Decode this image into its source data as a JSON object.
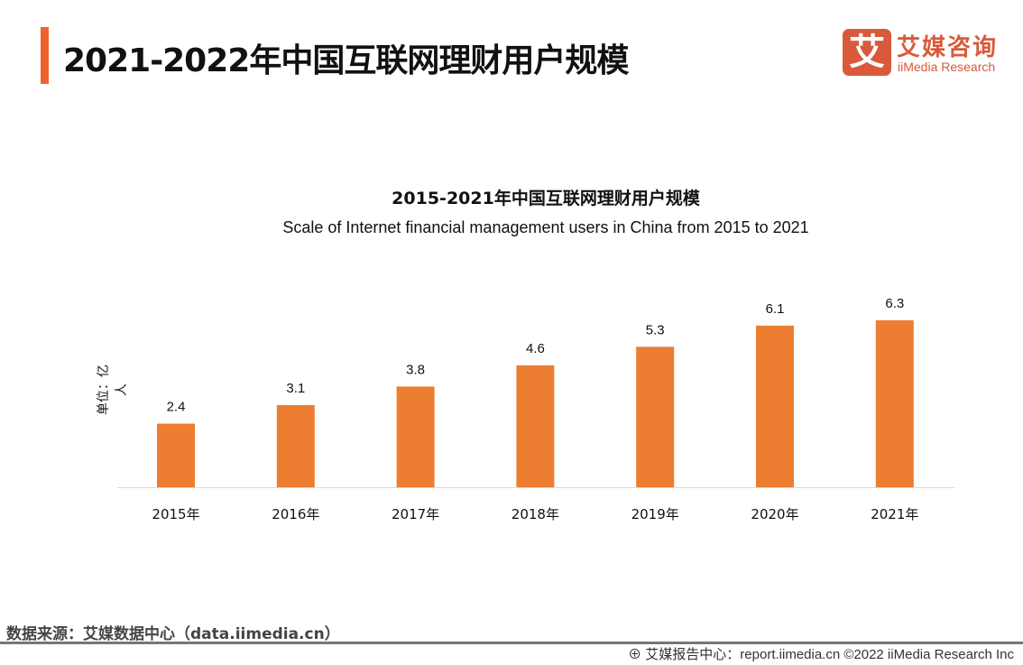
{
  "header": {
    "title": "2021-2022年中国互联网理财用户规模"
  },
  "logo": {
    "mark": "艾",
    "cn": "艾媒咨询",
    "en": "iiMedia Research"
  },
  "colors": {
    "accent": "#f0622b",
    "bar": "#ed7d31",
    "logo": "#d95a3b"
  },
  "chart_data": {
    "type": "bar",
    "title": "2015-2021年中国互联网理财用户规模",
    "subtitle": "Scale of Internet financial management users in China from 2015 to 2021",
    "ylabel": "单位：亿人",
    "categories": [
      "2015年",
      "2016年",
      "2017年",
      "2018年",
      "2019年",
      "2020年",
      "2021年"
    ],
    "values": [
      2.4,
      3.1,
      3.8,
      4.6,
      5.3,
      6.1,
      6.3
    ],
    "data_labels": [
      "2.4",
      "3.1",
      "3.8",
      "4.6",
      "5.3",
      "6.1",
      "6.3"
    ],
    "ylim": [
      0,
      6.3
    ],
    "grid": false
  },
  "footer": {
    "source": "数据来源：艾媒数据中心（data.iimedia.cn）",
    "report": "艾媒报告中心：report.iimedia.cn   ©2022  iiMedia Research  Inc"
  }
}
